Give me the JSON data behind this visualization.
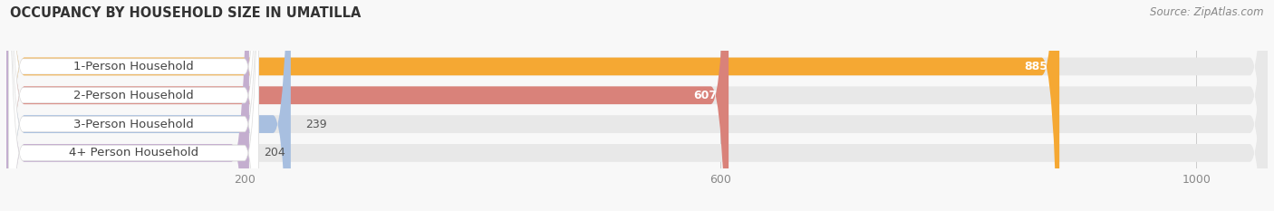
{
  "title": "OCCUPANCY BY HOUSEHOLD SIZE IN UMATILLA",
  "source": "Source: ZipAtlas.com",
  "categories": [
    "1-Person Household",
    "2-Person Household",
    "3-Person Household",
    "4+ Person Household"
  ],
  "values": [
    885,
    607,
    239,
    204
  ],
  "bar_colors": [
    "#F5A833",
    "#D9827A",
    "#A8BFE0",
    "#C4AECF"
  ],
  "bg_color": "#EFEFEF",
  "white_label_bg": "#FFFFFF",
  "xlim_max": 1060,
  "xticks": [
    200,
    600,
    1000
  ],
  "title_fontsize": 10.5,
  "source_fontsize": 8.5,
  "label_fontsize": 9.5,
  "value_fontsize": 9,
  "fig_bg": "#F8F8F8"
}
